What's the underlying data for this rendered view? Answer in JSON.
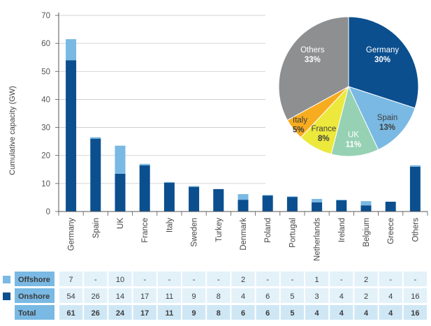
{
  "chart_data": [
    {
      "type": "bar",
      "stacked": true,
      "ylabel": "Cumulative capacity (GW)",
      "xlabel": "",
      "ylim": [
        0,
        70
      ],
      "yticks": [
        0,
        10,
        20,
        30,
        40,
        50,
        60,
        70
      ],
      "grid": true,
      "categories": [
        "Germany",
        "Spain",
        "UK",
        "France",
        "Italy",
        "Sweden",
        "Turkey",
        "Denmark",
        "Poland",
        "Portugal",
        "Netherlands",
        "Ireland",
        "Belgium",
        "Greece",
        "Others"
      ],
      "series": [
        {
          "name": "Onshore",
          "values": [
            54,
            26,
            14,
            17,
            11,
            9,
            8,
            4,
            6,
            5,
            3,
            4,
            2,
            4,
            16
          ]
        },
        {
          "name": "Offshore",
          "values": [
            7,
            0,
            10,
            0,
            0,
            0,
            0,
            2,
            0,
            0,
            1,
            0,
            2,
            0,
            0
          ]
        }
      ],
      "bar_values": {
        "Onshore": [
          54,
          26,
          13.5,
          16.5,
          10.3,
          8.8,
          8,
          4.2,
          5.7,
          5.2,
          3.3,
          4,
          2.2,
          3.5,
          16
        ],
        "Offshore": [
          7.5,
          0.5,
          10,
          0.5,
          0.2,
          0.3,
          0,
          2,
          0.2,
          0.2,
          1.2,
          0.2,
          1.5,
          0,
          0.5
        ]
      }
    },
    {
      "type": "pie",
      "slices": [
        {
          "label": "Germany",
          "value": 30,
          "value_label": "30%"
        },
        {
          "label": "Spain",
          "value": 13,
          "value_label": "13%"
        },
        {
          "label": "UK",
          "value": 11,
          "value_label": "11%"
        },
        {
          "label": "France",
          "value": 8,
          "value_label": "8%"
        },
        {
          "label": "Italy",
          "value": 5,
          "value_label": "5%"
        },
        {
          "label": "Others",
          "value": 33,
          "value_label": "33%"
        }
      ]
    },
    {
      "type": "table",
      "rows": [
        {
          "label": "Offshore",
          "cells": [
            "7",
            "-",
            "10",
            "-",
            "-",
            "-",
            "-",
            "2",
            "-",
            "-",
            "1",
            "-",
            "2",
            "-",
            "-"
          ]
        },
        {
          "label": "Onshore",
          "cells": [
            "54",
            "26",
            "14",
            "17",
            "11",
            "9",
            "8",
            "4",
            "6",
            "5",
            "3",
            "4",
            "2",
            "4",
            "16"
          ]
        },
        {
          "label": "Total",
          "cells": [
            "61",
            "26",
            "24",
            "17",
            "11",
            "9",
            "8",
            "6",
            "6",
            "5",
            "4",
            "4",
            "4",
            "4",
            "16"
          ]
        }
      ]
    }
  ],
  "colors": {
    "onshore": "#0b4f8f",
    "offshore": "#79b9e3",
    "pie_germany": "#0b4f8f",
    "pie_spain": "#79b9e3",
    "pie_uk": "#96d1b4",
    "pie_france": "#ece83c",
    "pie_italy": "#f6ac1e",
    "pie_others": "#8e8f91",
    "pie_label_light": "#ffffff",
    "pie_label_dark": "#3d3d3d",
    "axis": "#555555",
    "grid": "#c8c8c8",
    "table_row_bg": "#e3f1f9",
    "table_total_bg": "#cfe7f5",
    "table_header_bg": "#79b9e3",
    "table_header_text": "#ffffff"
  }
}
